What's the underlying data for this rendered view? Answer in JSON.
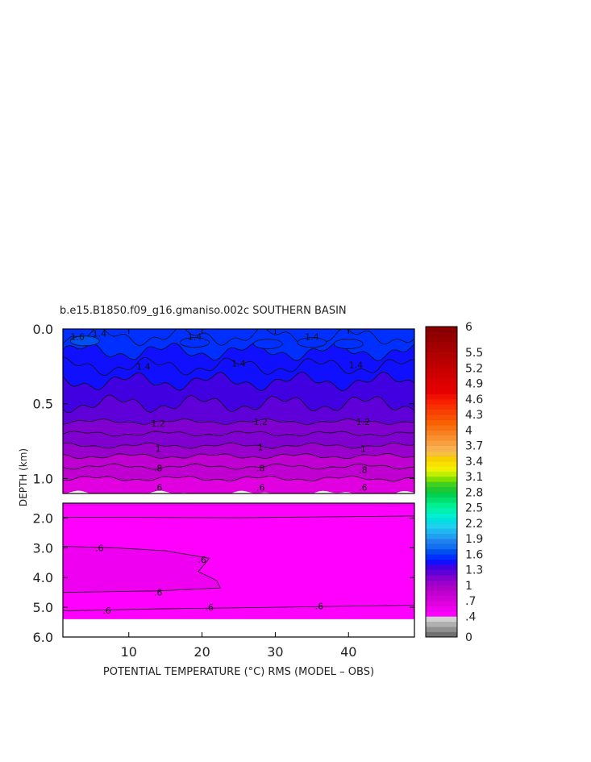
{
  "chart_data": {
    "type": "heatmap",
    "title": "b.e15.B1850.f09_g16.gmaniso.002c SOUTHERN BASIN",
    "xlabel": "POTENTIAL TEMPERATURE (°C) RMS (MODEL – OBS)",
    "ylabel": "DEPTH (km)",
    "xlim": [
      1,
      49
    ],
    "x_ticks": [
      "10",
      "20",
      "30",
      "40"
    ],
    "x_tick_values": [
      10,
      20,
      30,
      40
    ],
    "upper_panel": {
      "ylim": [
        0.0,
        1.1
      ],
      "y_ticks": [
        "0.0",
        "0.5",
        "1.0"
      ],
      "y_tick_values": [
        0.0,
        0.5,
        1.0
      ]
    },
    "lower_panel": {
      "ylim": [
        1.5,
        6.0
      ],
      "y_ticks": [
        "2.0",
        "3.0",
        "4.0",
        "5.0",
        "6.0"
      ],
      "y_tick_values": [
        2.0,
        3.0,
        4.0,
        5.0,
        6.0
      ],
      "data_bottom_depth": 5.4
    },
    "contours": {
      "upper_depth_profile": [
        {
          "depth": 0.0,
          "value": 1.55
        },
        {
          "depth": 0.05,
          "value": 1.55
        },
        {
          "depth": 0.15,
          "value": 1.5
        },
        {
          "depth": 0.25,
          "value": 1.45
        },
        {
          "depth": 0.35,
          "value": 1.4
        },
        {
          "depth": 0.5,
          "value": 1.3
        },
        {
          "depth": 0.62,
          "value": 1.22
        },
        {
          "depth": 0.7,
          "value": 1.15
        },
        {
          "depth": 0.78,
          "value": 1.05
        },
        {
          "depth": 0.85,
          "value": 0.95
        },
        {
          "depth": 0.92,
          "value": 0.85
        },
        {
          "depth": 1.0,
          "value": 0.75
        },
        {
          "depth": 1.1,
          "value": 0.62
        }
      ],
      "labels": [
        {
          "text": "1.6",
          "x": 3,
          "depth": 0.05
        },
        {
          "text": "1.4",
          "x": 6,
          "depth": 0.03
        },
        {
          "text": "1.4",
          "x": 19,
          "depth": 0.05
        },
        {
          "text": "1.4",
          "x": 35,
          "depth": 0.05
        },
        {
          "text": "1.4",
          "x": 12,
          "depth": 0.25
        },
        {
          "text": "1.4",
          "x": 25,
          "depth": 0.23
        },
        {
          "text": "1.4",
          "x": 41,
          "depth": 0.24
        },
        {
          "text": "1.2",
          "x": 14,
          "depth": 0.63
        },
        {
          "text": "1.2",
          "x": 28,
          "depth": 0.62
        },
        {
          "text": "1.2",
          "x": 42,
          "depth": 0.62
        },
        {
          "text": "1",
          "x": 14,
          "depth": 0.8
        },
        {
          "text": "1",
          "x": 28,
          "depth": 0.79
        },
        {
          "text": "1",
          "x": 42,
          "depth": 0.8
        },
        {
          "text": ".8",
          "x": 14,
          "depth": 0.93
        },
        {
          "text": ".8",
          "x": 28,
          "depth": 0.93
        },
        {
          "text": ".8",
          "x": 42,
          "depth": 0.94
        },
        {
          "text": ".6",
          "x": 14,
          "depth": 1.06
        },
        {
          "text": ".6",
          "x": 28,
          "depth": 1.06
        },
        {
          "text": ".6",
          "x": 42,
          "depth": 1.06
        },
        {
          "text": ".6",
          "x": 6,
          "depth": 3.0
        },
        {
          "text": ".6",
          "x": 20,
          "depth": 3.4
        },
        {
          "text": ".6",
          "x": 14,
          "depth": 4.5
        },
        {
          "text": ".6",
          "x": 7,
          "depth": 5.1
        },
        {
          "text": ".6",
          "x": 21,
          "depth": 5.0
        },
        {
          "text": ".6",
          "x": 36,
          "depth": 4.95
        }
      ]
    },
    "colorbar": {
      "min": 0,
      "max": 6,
      "tick_labels": [
        "6",
        "5.5",
        "5.2",
        "4.9",
        "4.6",
        "4.3",
        "4",
        "3.7",
        "3.4",
        "3.1",
        "2.8",
        "2.5",
        "2.2",
        "1.9",
        "1.6",
        "1.3",
        "1",
        ".7",
        ".4",
        "0"
      ],
      "tick_values": [
        6,
        5.5,
        5.2,
        4.9,
        4.6,
        4.3,
        4,
        3.7,
        3.4,
        3.1,
        2.8,
        2.5,
        2.2,
        1.9,
        1.6,
        1.3,
        1,
        0.7,
        0.4,
        0
      ],
      "levels": [
        0,
        0.1,
        0.2,
        0.3,
        0.4,
        0.5,
        0.6,
        0.7,
        0.8,
        0.9,
        1.0,
        1.1,
        1.2,
        1.3,
        1.4,
        1.5,
        1.6,
        1.7,
        1.8,
        1.9,
        2.0,
        2.1,
        2.2,
        2.3,
        2.4,
        2.5,
        2.6,
        2.7,
        2.8,
        2.9,
        3.0,
        3.1,
        3.2,
        3.3,
        3.4,
        3.5,
        3.6,
        3.7,
        3.8,
        3.9,
        4.0,
        4.1,
        4.2,
        4.3,
        4.4,
        4.5,
        4.6,
        4.7,
        4.8,
        4.9,
        5.0,
        5.1,
        5.2,
        5.3,
        5.4,
        5.5,
        5.6,
        5.7,
        5.8,
        5.9
      ],
      "colors": [
        "#707070",
        "#909090",
        "#b0b0b0",
        "#d0d0d0",
        "#ff00ff",
        "#f000f0",
        "#e000e0",
        "#d000d8",
        "#c000d0",
        "#b000c8",
        "#9a00cc",
        "#8000d0",
        "#6000d8",
        "#4000e0",
        "#1010ff",
        "#0030ff",
        "#0050f0",
        "#1070f0",
        "#2080f0",
        "#20a0f0",
        "#20b8f0",
        "#20d0f0",
        "#00e0e0",
        "#00f0d0",
        "#00f0b0",
        "#00f090",
        "#00e070",
        "#00d050",
        "#20c830",
        "#40d020",
        "#80e000",
        "#c0f000",
        "#f0f000",
        "#f8e000",
        "#f8d000",
        "#f8c040",
        "#f8b050",
        "#f8a040",
        "#f89030",
        "#f88020",
        "#f87010",
        "#f86000",
        "#f85000",
        "#f84000",
        "#f83000",
        "#f82000",
        "#f01000",
        "#e80000",
        "#e00000",
        "#d80000",
        "#d00000",
        "#c80000",
        "#c00000",
        "#b80000",
        "#b00000",
        "#a80000",
        "#a00000",
        "#980000",
        "#900000",
        "#880000"
      ]
    },
    "grid": false,
    "legend": "right"
  }
}
